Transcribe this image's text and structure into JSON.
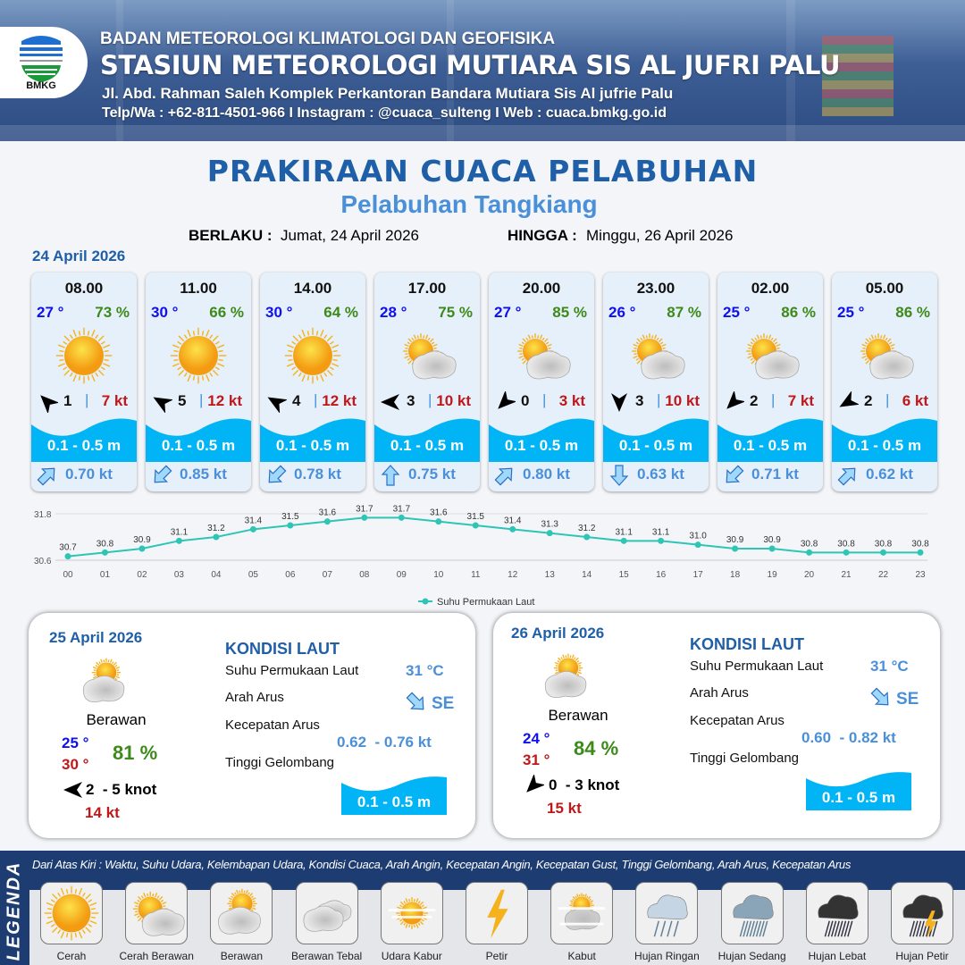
{
  "header": {
    "logo_text": "BMKG",
    "agency": "BADAN METEOROLOGI KLIMATOLOGI DAN GEOFISIKA",
    "station": "STASIUN METEOROLOGI MUTIARA SIS AL JUFRI PALU",
    "address": "Jl. Abd. Rahman Saleh Komplek Perkantoran Bandara Mutiara Sis Al jufrie Palu",
    "contact": "Telp/Wa : +62-811-4501-966  I  Instagram : @cuaca_sulteng  I  Web : cuaca.bmkg.go.id"
  },
  "title": "PRAKIRAAN CUACA PELABUHAN",
  "subtitle": "Pelabuhan Tangkiang",
  "validity": {
    "from_label": "BERLAKU :",
    "from": "Jumat, 24 April 2026",
    "to_label": "HINGGA :",
    "to": "Minggu, 26 April 2026"
  },
  "day1_date": "24 April 2026",
  "hourly": [
    {
      "time": "08.00",
      "temp": "27 °",
      "rh": "73 %",
      "icon": "sun-icon",
      "wind_dir_deg": 315,
      "wind": "1",
      "gust": "7 kt",
      "wave": "0.1 - 0.5 m",
      "current_dir_deg": 45,
      "current": "0.70 kt"
    },
    {
      "time": "11.00",
      "temp": "30 °",
      "rh": "66 %",
      "icon": "sun-icon",
      "wind_dir_deg": 300,
      "wind": "5",
      "gust": "12 kt",
      "wave": "0.1 - 0.5 m",
      "current_dir_deg": 225,
      "current": "0.85 kt"
    },
    {
      "time": "14.00",
      "temp": "30 °",
      "rh": "64 %",
      "icon": "sun-icon",
      "wind_dir_deg": 300,
      "wind": "4",
      "gust": "12 kt",
      "wave": "0.1 - 0.5 m",
      "current_dir_deg": 225,
      "current": "0.78 kt"
    },
    {
      "time": "17.00",
      "temp": "28 °",
      "rh": "75 %",
      "icon": "partly-cloudy-icon",
      "wind_dir_deg": 270,
      "wind": "3",
      "gust": "10 kt",
      "wave": "0.1 - 0.5 m",
      "current_dir_deg": 0,
      "current": "0.75 kt"
    },
    {
      "time": "20.00",
      "temp": "27 °",
      "rh": "85 %",
      "icon": "partly-cloudy-icon",
      "wind_dir_deg": 225,
      "wind": "0",
      "gust": "3 kt",
      "wave": "0.1 - 0.5 m",
      "current_dir_deg": 45,
      "current": "0.80 kt"
    },
    {
      "time": "23.00",
      "temp": "26 °",
      "rh": "87 %",
      "icon": "partly-cloudy-icon",
      "wind_dir_deg": 180,
      "wind": "3",
      "gust": "10 kt",
      "wave": "0.1 - 0.5 m",
      "current_dir_deg": 180,
      "current": "0.63 kt"
    },
    {
      "time": "02.00",
      "temp": "25 °",
      "rh": "86 %",
      "icon": "partly-cloudy-icon",
      "wind_dir_deg": 225,
      "wind": "2",
      "gust": "7 kt",
      "wave": "0.1 - 0.5 m",
      "current_dir_deg": 225,
      "current": "0.71 kt"
    },
    {
      "time": "05.00",
      "temp": "25 °",
      "rh": "86 %",
      "icon": "partly-cloudy-icon",
      "wind_dir_deg": 240,
      "wind": "2",
      "gust": "6 kt",
      "wave": "0.1 - 0.5 m",
      "current_dir_deg": 45,
      "current": "0.62 kt"
    }
  ],
  "chart_data": {
    "type": "line",
    "x": [
      "00",
      "01",
      "02",
      "03",
      "04",
      "05",
      "06",
      "07",
      "08",
      "09",
      "10",
      "11",
      "12",
      "13",
      "14",
      "15",
      "16",
      "17",
      "18",
      "19",
      "20",
      "21",
      "22",
      "23"
    ],
    "series": [
      {
        "name": "Suhu Permukaan Laut",
        "color": "#2ec4b6",
        "values": [
          30.7,
          30.8,
          30.9,
          31.1,
          31.2,
          31.4,
          31.5,
          31.6,
          31.7,
          31.7,
          31.6,
          31.5,
          31.4,
          31.3,
          31.2,
          31.1,
          31.1,
          31.0,
          30.9,
          30.9,
          30.8,
          30.8,
          30.8,
          30.8
        ]
      }
    ],
    "yticks": [
      "31.8",
      "30.6"
    ],
    "ylim": [
      30.6,
      31.8
    ],
    "grid": true,
    "legend": "bottom"
  },
  "days": [
    {
      "date": "25 April 2026",
      "icon": "cloudy-icon",
      "condition": "Berawan",
      "tmin": "25 °",
      "tmax": "30 °",
      "rh": "81 %",
      "wind_dir_deg": 270,
      "wind": "2  - 5 knot",
      "gust": "14 kt",
      "sea_title": "KONDISI LAUT",
      "sst_label": "Suhu Permukaan Laut",
      "sst": "31 °C",
      "cur_dir_label": "Arah Arus",
      "cur_dir": "SE",
      "cur_dir_deg": 135,
      "cur_speed_label": "Kecepatan Arus",
      "cur_speed": "0.62  - 0.76 kt",
      "wave_label": "Tinggi Gelombang",
      "wave": "0.1 - 0.5 m"
    },
    {
      "date": "26 April 2026",
      "icon": "cloudy-icon",
      "condition": "Berawan",
      "tmin": "24 °",
      "tmax": "31 °",
      "rh": "84 %",
      "wind_dir_deg": 225,
      "wind": "0  - 3 knot",
      "gust": "15 kt",
      "sea_title": "KONDISI LAUT",
      "sst_label": "Suhu Permukaan Laut",
      "sst": "31 °C",
      "cur_dir_label": "Arah Arus",
      "cur_dir": "SE",
      "cur_dir_deg": 135,
      "cur_speed_label": "Kecepatan Arus",
      "cur_speed": "0.60  - 0.82 kt",
      "wave_label": "Tinggi Gelombang",
      "wave": "0.1 - 0.5 m"
    }
  ],
  "legend": {
    "title": "LEGENDA",
    "description": "Dari Atas Kiri : Waktu, Suhu Udara, Kelembapan Udara, Kondisi Cuaca, Arah Angin, Kecepatan Angin, Kecepatan Gust, Tinggi Gelombang, Arah Arus, Kecepatan Arus",
    "items": [
      {
        "label": "Cerah",
        "icon": "sun-icon"
      },
      {
        "label": "Cerah Berawan",
        "icon": "partly-cloudy-icon"
      },
      {
        "label": "Berawan",
        "icon": "cloudy-icon"
      },
      {
        "label": "Berawan Tebal",
        "icon": "overcast-icon"
      },
      {
        "label": "Udara Kabur",
        "icon": "haze-icon"
      },
      {
        "label": "Petir",
        "icon": "lightning-icon"
      },
      {
        "label": "Kabut",
        "icon": "fog-icon"
      },
      {
        "label": "Hujan Ringan",
        "icon": "light-rain-icon"
      },
      {
        "label": "Hujan Sedang",
        "icon": "moderate-rain-icon"
      },
      {
        "label": "Hujan Lebat",
        "icon": "heavy-rain-icon"
      },
      {
        "label": "Hujan Petir",
        "icon": "thunderstorm-icon"
      }
    ]
  },
  "colors": {
    "brand_blue": "#1f5fa8",
    "temp": "#1010ee",
    "tmax": "#c01818",
    "humidity": "#3d8a1a",
    "wave": "#00b4f5",
    "current": "#4a90d9",
    "legend_bg": "#1d3c72"
  }
}
